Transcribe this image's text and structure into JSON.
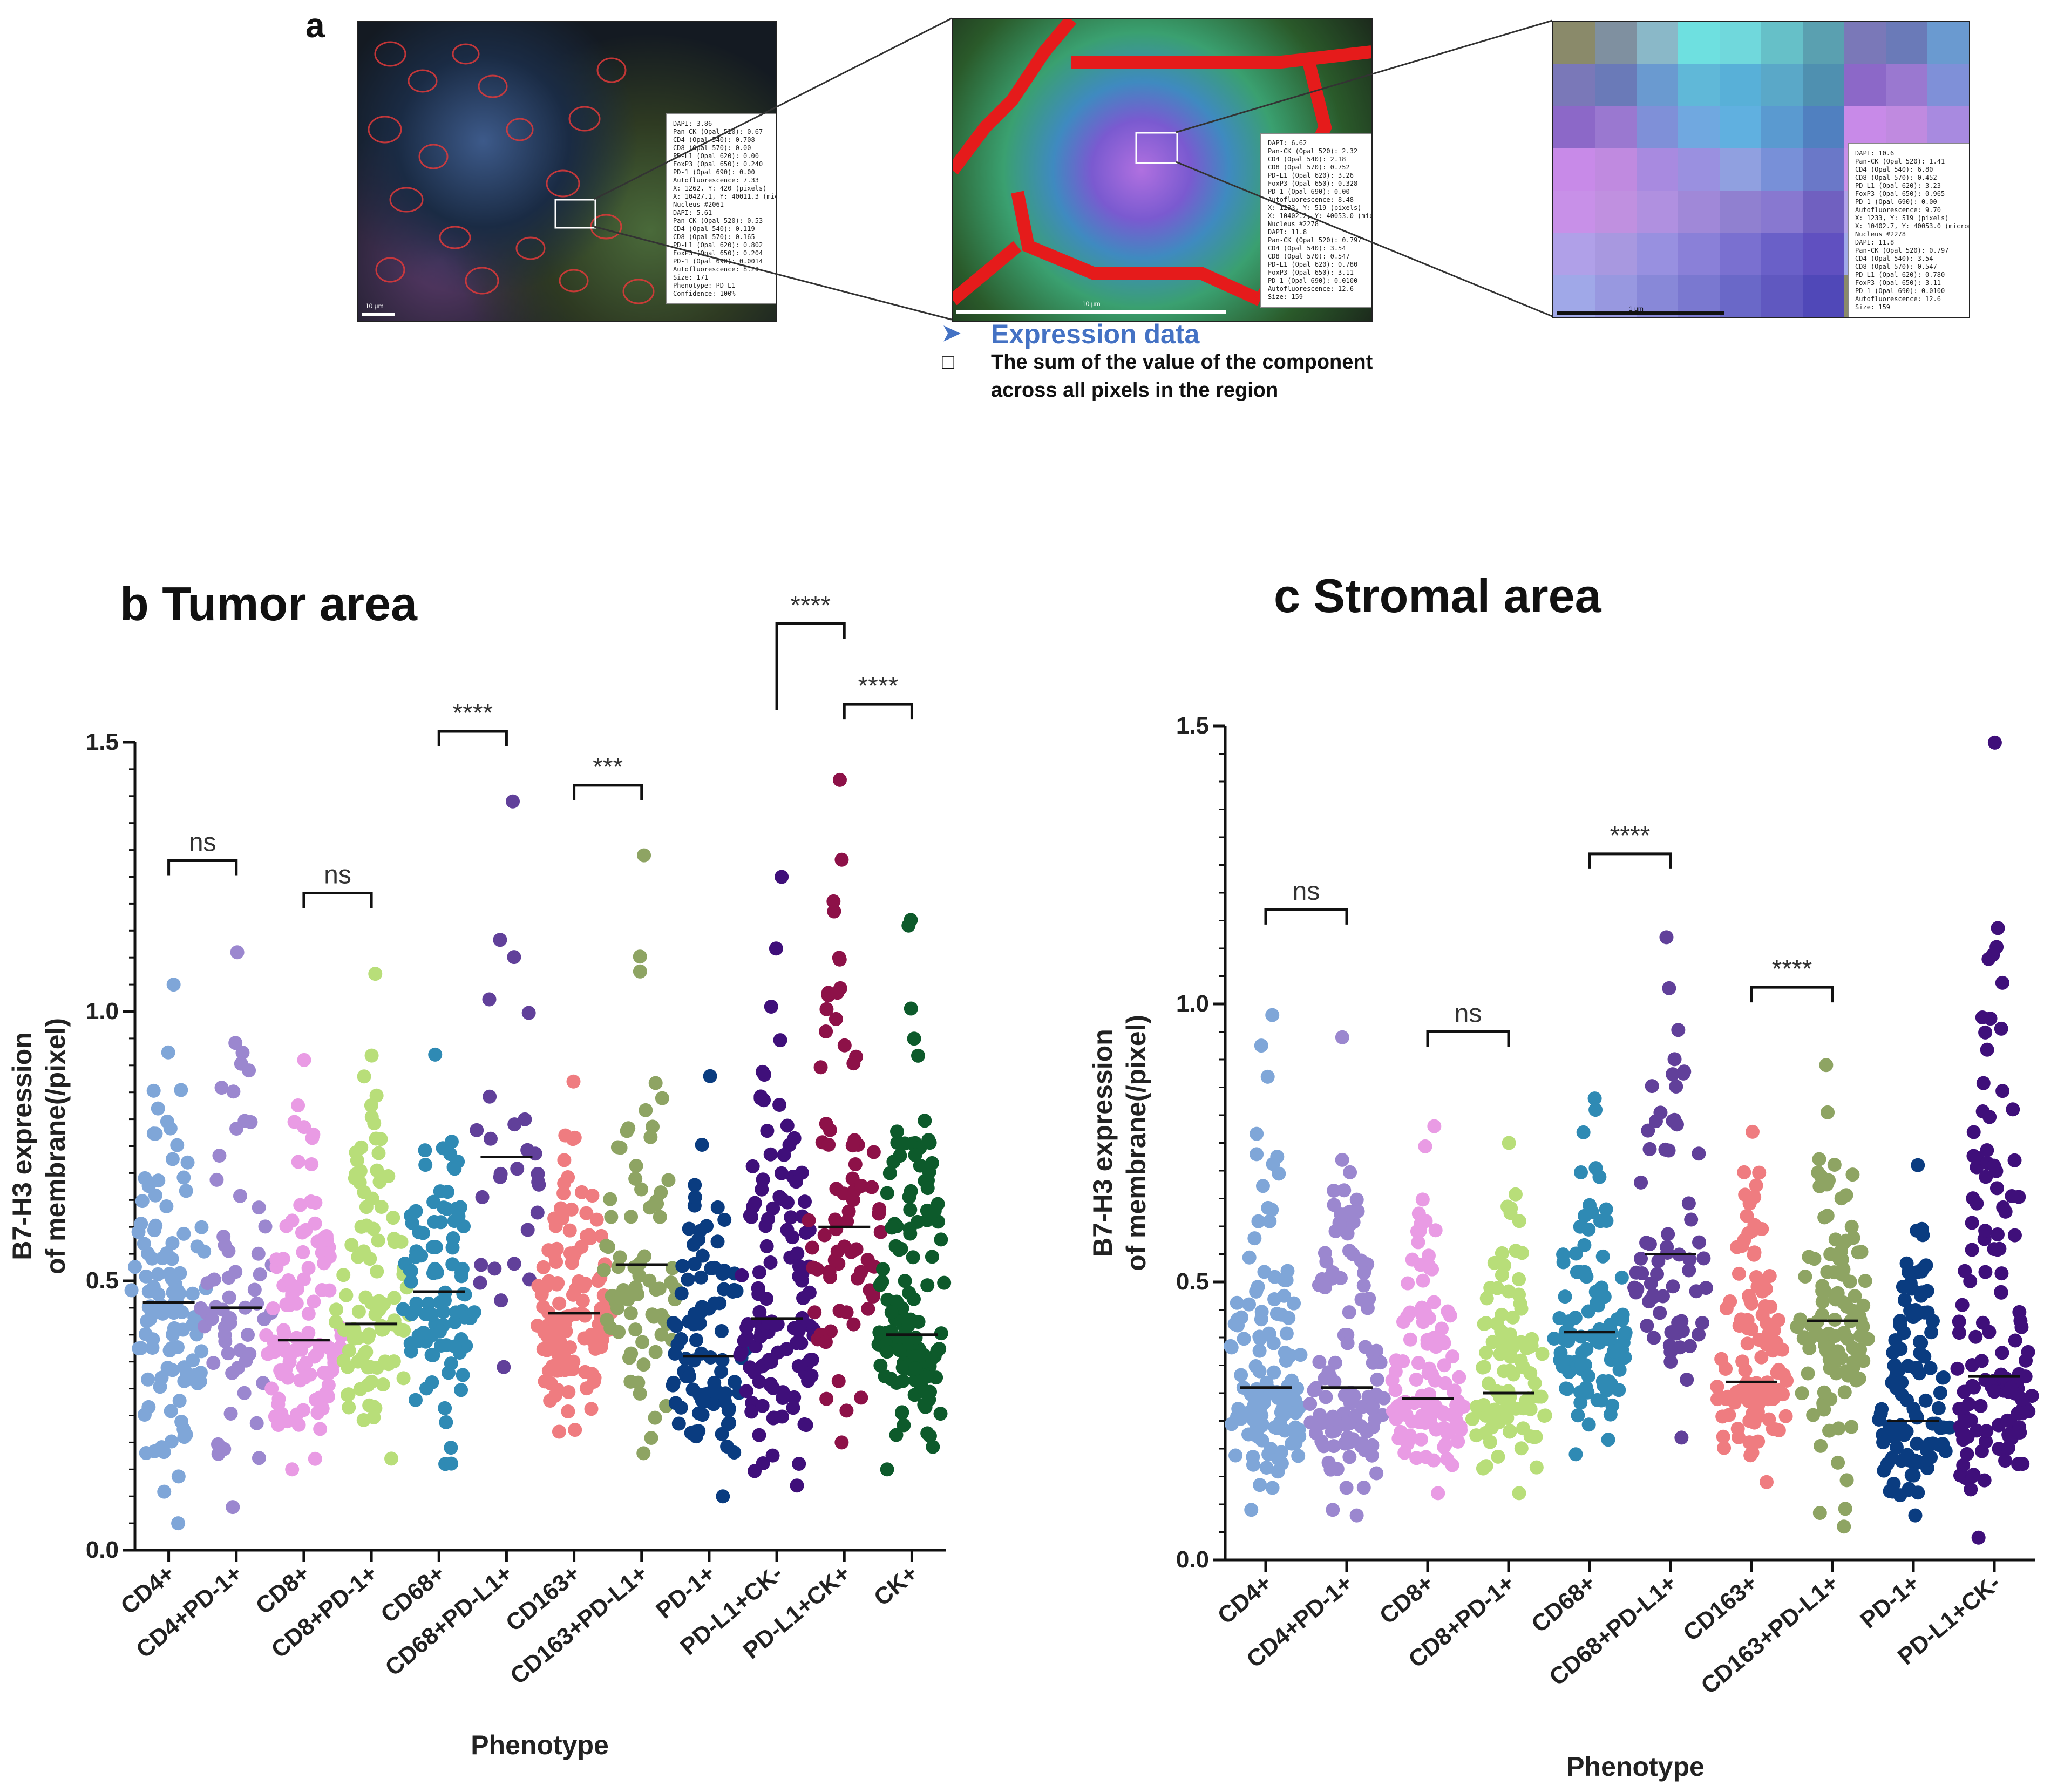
{
  "panel_a": {
    "letter": "a",
    "inset1": [
      "DAPI: 3.86",
      "Pan-CK (Opal 520): 0.67",
      "CD4 (Opal 540): 0.708",
      "CD8 (Opal 570): 0.00",
      "PD-L1 (Opal 620): 0.00",
      "FoxP3 (Opal 650): 0.240",
      "PD-1 (Opal 690): 0.00",
      "Autofluorescence: 7.33",
      "X: 1262, Y: 420 (pixels)",
      "X: 10427.1, Y: 40011.3 (microns)",
      "Nucleus #2061",
      "DAPI: 5.61",
      "Pan-CK (Opal 520): 0.53",
      "CD4 (Opal 540): 0.119",
      "CD8 (Opal 570): 0.165",
      "PD-L1 (Opal 620): 0.802",
      "FoxP3 (Opal 650): 0.204",
      "PD-1 (Opal 690): 0.0014",
      "Autofluorescence: 8.20",
      "Size: 171",
      "Phenotype: PD-L1",
      "Confidence: 100%"
    ],
    "inset2": [
      "DAPI: 6.62",
      "Pan-CK (Opal 520): 2.32",
      "CD4 (Opal 540): 2.18",
      "CD8 (Opal 570): 0.752",
      "PD-L1 (Opal 620): 3.26",
      "FoxP3 (Opal 650): 0.328",
      "PD-1 (Opal 690): 0.00",
      "Autofluorescence: 8.48",
      "X: 1233, Y: 519 (pixels)",
      "X: 10402.2, Y: 40053.0 (microns)",
      "Nucleus #2278",
      "DAPI: 11.8",
      "Pan-CK (Opal 520): 0.797",
      "CD4 (Opal 540): 3.54",
      "CD8 (Opal 570): 0.547",
      "PD-L1 (Opal 620): 0.780",
      "FoxP3 (Opal 650): 3.11",
      "PD-1 (Opal 690): 0.0100",
      "Autofluorescence: 12.6",
      "Size: 159"
    ],
    "inset3": [
      "DAPI: 10.6",
      "Pan-CK (Opal 520): 1.41",
      "CD4 (Opal 540): 6.80",
      "CD8 (Opal 570): 0.452",
      "PD-L1 (Opal 620): 3.23",
      "FoxP3 (Opal 650): 0.965",
      "PD-1 (Opal 690): 0.00",
      "Autofluorescence: 9.70",
      "X: 1233, Y: 519 (pixels)",
      "X: 10402.7, Y: 40053.0 (microns)",
      "Nucleus #2278",
      "DAPI: 11.8",
      "Pan-CK (Opal 520): 0.797",
      "CD4 (Opal 540): 3.54",
      "CD8 (Opal 570): 0.547",
      "PD-L1 (Opal 620): 0.780",
      "FoxP3 (Opal 650): 3.11",
      "PD-1 (Opal 690): 0.0100",
      "Autofluorescence: 12.6",
      "Size: 159"
    ],
    "scale1": "10 µm",
    "scale2": "10 µm",
    "scale3": "1 µm",
    "legend_head": "Expression data",
    "legend_line1": "The sum of the value of the component",
    "legend_line2": "across all pixels in the region",
    "arrow_glyph": "➤",
    "box_glyph": "□"
  },
  "colors": {
    "CD4+": "#7fa6d8",
    "CD4+PD-1+": "#9b87cf",
    "CD8+": "#e99be4",
    "CD8+PD-1+": "#b8de79",
    "CD68+": "#2f8ab4",
    "CD68+PD-L1+": "#61409a",
    "CD163+": "#ef7c80",
    "CD163+PD-L1+": "#8ea463",
    "PD-1+": "#0a3c80",
    "PD-L1+CK-": "#3f0f7a",
    "PD-L1+CK+": "#8d1148",
    "CK+": "#0d5a2b"
  },
  "chart_data": [
    {
      "type": "scatter",
      "panel": "b",
      "title": "b Tumor area",
      "xlabel": "Phenotype",
      "ylabel_line1": "B7-H3 expression",
      "ylabel_line2": "of membrane(/pixel)",
      "ylim": [
        0,
        1.5
      ],
      "yticks": [
        "0.0",
        "0.5",
        "1.0",
        "1.5"
      ],
      "categories": [
        "CD4+",
        "CD4+PD-1+",
        "CD8+",
        "CD8+PD-1+",
        "CD68+",
        "CD68+PD-L1+",
        "CD163+",
        "CD163+PD-L1+",
        "PD-1+",
        "PD-L1+CK-",
        "PD-L1+CK+",
        "CK+"
      ],
      "medians": [
        0.46,
        0.45,
        0.39,
        0.42,
        0.48,
        0.73,
        0.44,
        0.53,
        0.36,
        0.43,
        0.6,
        0.4
      ],
      "ranges": [
        [
          0.05,
          1.05
        ],
        [
          0.08,
          1.11
        ],
        [
          0.15,
          0.91
        ],
        [
          0.17,
          1.07
        ],
        [
          0.16,
          0.92
        ],
        [
          0.34,
          1.39
        ],
        [
          0.22,
          0.87
        ],
        [
          0.18,
          1.29
        ],
        [
          0.1,
          0.88
        ],
        [
          0.12,
          1.25
        ],
        [
          0.2,
          1.43
        ],
        [
          0.15,
          1.17
        ]
      ],
      "counts": [
        110,
        60,
        110,
        95,
        95,
        28,
        120,
        75,
        90,
        120,
        75,
        130
      ],
      "comparisons": [
        {
          "from": 0,
          "to": 1,
          "label": "ns",
          "y": 1.28
        },
        {
          "from": 2,
          "to": 3,
          "label": "ns",
          "y": 1.22
        },
        {
          "from": 4,
          "to": 5,
          "label": "****",
          "y": 1.52
        },
        {
          "from": 6,
          "to": 7,
          "label": "***",
          "y": 1.42
        },
        {
          "from": 9,
          "to": 10,
          "label": "****",
          "y": 1.72,
          "left_y": 1.56
        },
        {
          "from": 10,
          "to": 11,
          "label": "****",
          "y": 1.57
        }
      ]
    },
    {
      "type": "scatter",
      "panel": "c",
      "title": "c Stromal area",
      "xlabel": "Phenotype",
      "ylabel_line1": "B7-H3 expression",
      "ylabel_line2": "of membrane(/pixel)",
      "ylim": [
        0,
        1.5
      ],
      "yticks": [
        "0.0",
        "0.5",
        "1.0",
        "1.5"
      ],
      "categories": [
        "CD4+",
        "CD4+PD-1+",
        "CD8+",
        "CD8+PD-1+",
        "CD68+",
        "CD68+PD-L1+",
        "CD163+",
        "CD163+PD-L1+",
        "PD-1+",
        "PD-L1+CK-"
      ],
      "medians": [
        0.31,
        0.31,
        0.29,
        0.3,
        0.41,
        0.55,
        0.32,
        0.43,
        0.25,
        0.33
      ],
      "ranges": [
        [
          0.09,
          0.98
        ],
        [
          0.08,
          0.94
        ],
        [
          0.12,
          0.78
        ],
        [
          0.12,
          0.75
        ],
        [
          0.19,
          0.83
        ],
        [
          0.22,
          1.12
        ],
        [
          0.14,
          0.77
        ],
        [
          0.06,
          0.89
        ],
        [
          0.08,
          0.71
        ],
        [
          0.04,
          1.47
        ]
      ],
      "counts": [
        120,
        110,
        110,
        100,
        100,
        65,
        110,
        110,
        110,
        130
      ],
      "comparisons": [
        {
          "from": 0,
          "to": 1,
          "label": "ns",
          "y": 1.17
        },
        {
          "from": 2,
          "to": 3,
          "label": "ns",
          "y": 0.95
        },
        {
          "from": 4,
          "to": 5,
          "label": "****",
          "y": 1.27
        },
        {
          "from": 6,
          "to": 7,
          "label": "****",
          "y": 1.03
        }
      ]
    }
  ]
}
